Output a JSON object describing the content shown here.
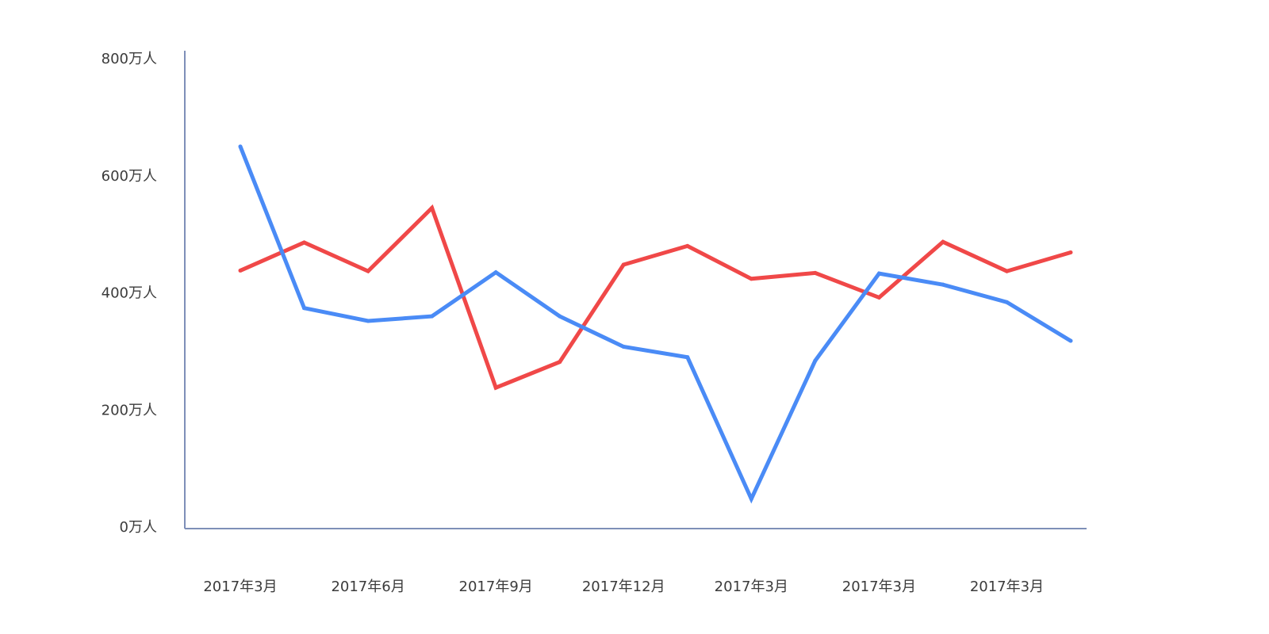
{
  "chart_data": {
    "type": "line",
    "title": "",
    "xlabel": "",
    "ylabel": "",
    "ylim": [
      0,
      800
    ],
    "y_ticks": [
      0,
      200,
      400,
      600,
      800
    ],
    "y_tick_labels": [
      "0万人",
      "200万人",
      "400万人",
      "600万人",
      "800万人"
    ],
    "x_tick_labels": [
      "2017年3月",
      "2017年6月",
      "2017年9月",
      "2017年12月",
      "2017年3月",
      "2017年3月",
      "2017年3月"
    ],
    "x_tick_positions": [
      0,
      2,
      4,
      6,
      8,
      10,
      12
    ],
    "x_count": 14,
    "grid": false,
    "legend": "none",
    "series": [
      {
        "color": "#f04848",
        "values": [
          438,
          486,
          437,
          545,
          238,
          282,
          448,
          480,
          424,
          434,
          392,
          487,
          437,
          469
        ]
      },
      {
        "color": "#4a8bf6",
        "values": [
          650,
          374,
          352,
          360,
          435,
          360,
          308,
          290,
          48,
          284,
          433,
          414,
          384,
          318
        ]
      }
    ]
  }
}
